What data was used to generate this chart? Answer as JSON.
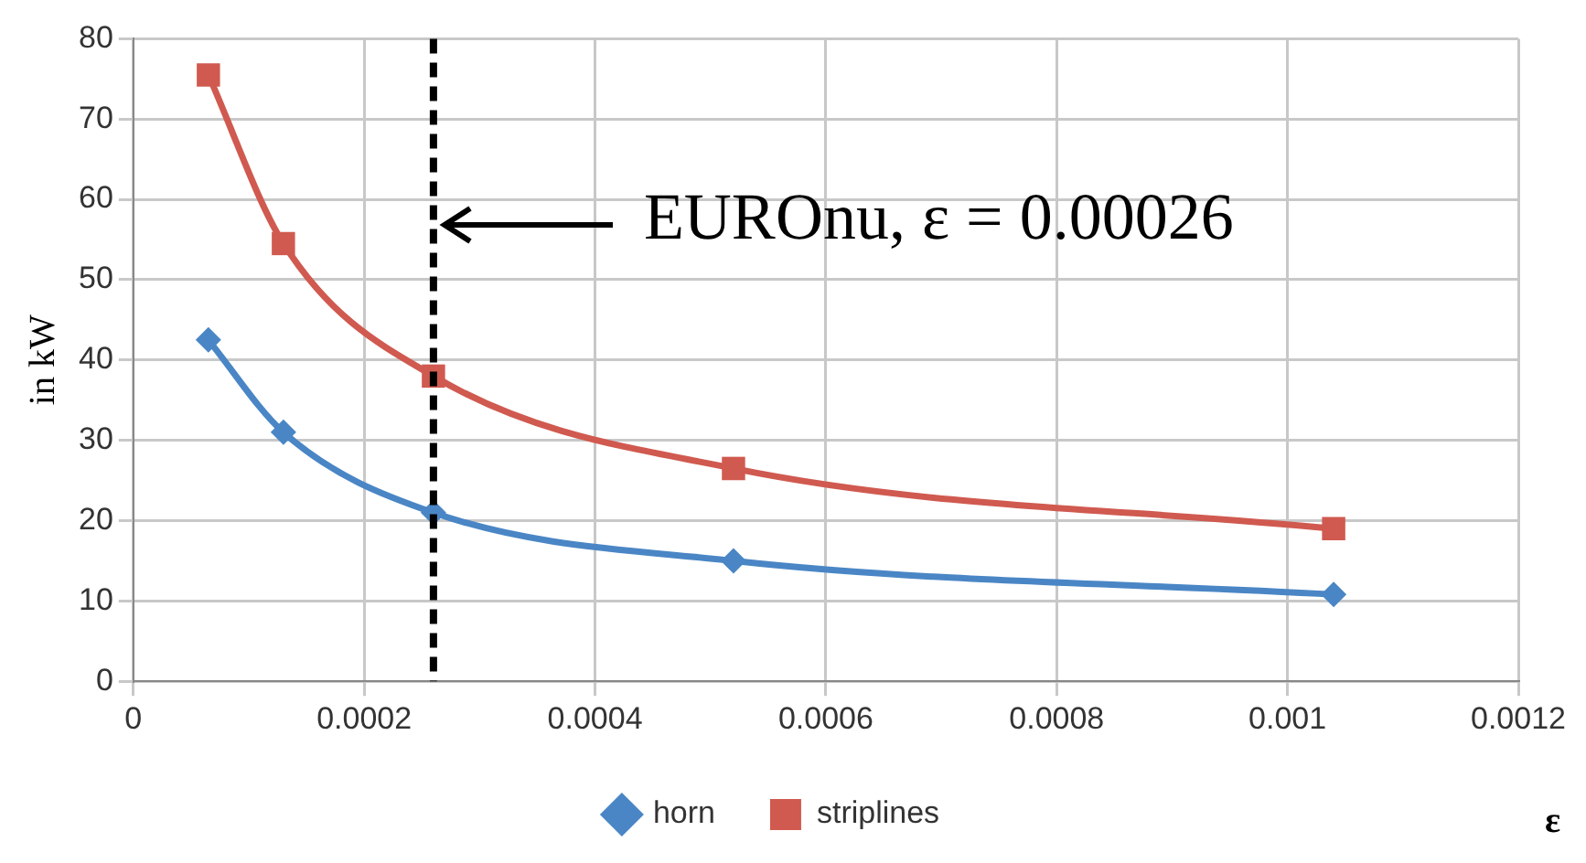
{
  "chart_data": {
    "type": "line",
    "xlabel": "ε",
    "ylabel": "in kW",
    "xlim": [
      0,
      0.0012
    ],
    "xticks": [
      0,
      0.0002,
      0.0004,
      0.0006,
      0.0008,
      0.001,
      0.0012
    ],
    "ylim": [
      0,
      80
    ],
    "yticks": [
      0,
      10,
      20,
      30,
      40,
      50,
      60,
      70,
      80
    ],
    "grid": true,
    "legend": "bottom",
    "series": [
      {
        "name": "horn",
        "color": "#4a86c5",
        "marker": "diamond",
        "x": [
          6.5e-05,
          0.00013,
          0.00026,
          0.00052,
          0.00104
        ],
        "values": [
          42.5,
          31,
          21,
          15,
          10.8
        ]
      },
      {
        "name": "striplines",
        "color": "#d05a50",
        "marker": "square",
        "x": [
          6.5e-05,
          0.00013,
          0.00026,
          0.00052,
          0.00104
        ],
        "values": [
          75.5,
          54.5,
          38,
          26.5,
          19
        ]
      }
    ],
    "ref_lines": [
      {
        "axis": "x",
        "value": 0.00026,
        "label": "EUROnu, ε = 0.00026",
        "color": "#000000",
        "line_style": "dashed"
      }
    ]
  }
}
